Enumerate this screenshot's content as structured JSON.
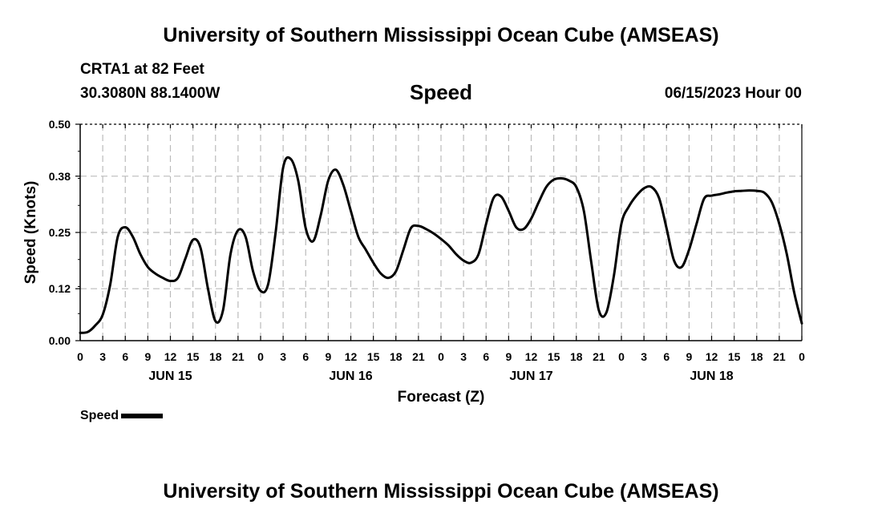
{
  "page": {
    "title": "University of Southern Mississippi Ocean Cube (AMSEAS)",
    "footer_title": "University of Southern Mississippi Ocean Cube (AMSEAS)",
    "station": "CRTA1 at 82 Feet",
    "coords": "30.3080N  88.1400W",
    "subtitle": "Speed",
    "datetime": "06/15/2023 Hour 00"
  },
  "chart_data": {
    "type": "line",
    "title": "Speed",
    "xlabel": "Forecast (Z)",
    "ylabel": "Speed (Knots)",
    "ylim": [
      0,
      0.5
    ],
    "yticks": [
      0.0,
      0.12,
      0.25,
      0.38,
      0.5
    ],
    "ytick_labels": [
      "0.00",
      "0.12",
      "0.25",
      "0.38",
      "0.50"
    ],
    "xlim": [
      0,
      96
    ],
    "xtick_step_hours": 3,
    "xtick_labels": [
      "0",
      "3",
      "6",
      "9",
      "12",
      "15",
      "18",
      "21",
      "0",
      "3",
      "6",
      "9",
      "12",
      "15",
      "18",
      "21",
      "0",
      "3",
      "6",
      "9",
      "12",
      "15",
      "18",
      "21",
      "0",
      "3",
      "6",
      "9",
      "12",
      "15",
      "18",
      "21",
      "0"
    ],
    "date_labels": [
      {
        "label": "JUN 15",
        "hour": 12
      },
      {
        "label": "JUN 16",
        "hour": 36
      },
      {
        "label": "JUN 17",
        "hour": 60
      },
      {
        "label": "JUN 18",
        "hour": 84
      }
    ],
    "grid": true,
    "legend": [
      {
        "label": "Speed",
        "color": "#000000"
      }
    ],
    "series": [
      {
        "name": "Speed",
        "color": "#000000",
        "x": [
          0,
          1,
          2,
          3,
          4,
          5,
          6,
          7,
          8,
          9,
          10,
          11,
          12,
          13,
          14,
          15,
          16,
          17,
          18,
          19,
          20,
          21,
          22,
          23,
          24,
          25,
          26,
          27,
          28,
          29,
          30,
          31,
          32,
          33,
          34,
          35,
          36,
          37,
          38,
          39,
          40,
          41,
          42,
          43,
          44,
          45,
          46,
          47,
          48,
          49,
          50,
          51,
          52,
          53,
          54,
          55,
          56,
          57,
          58,
          59,
          60,
          61,
          62,
          63,
          64,
          65,
          66,
          67,
          68,
          69,
          70,
          71,
          72,
          73,
          74,
          75,
          76,
          77,
          78,
          79,
          80,
          81,
          82,
          83,
          84,
          85,
          86,
          87,
          88,
          89,
          90,
          91,
          92,
          93,
          94,
          95,
          96
        ],
        "values": [
          0.018,
          0.02,
          0.035,
          0.06,
          0.13,
          0.24,
          0.262,
          0.24,
          0.2,
          0.17,
          0.155,
          0.145,
          0.138,
          0.145,
          0.19,
          0.233,
          0.215,
          0.12,
          0.045,
          0.07,
          0.2,
          0.255,
          0.24,
          0.16,
          0.115,
          0.13,
          0.25,
          0.4,
          0.42,
          0.37,
          0.26,
          0.23,
          0.29,
          0.37,
          0.395,
          0.36,
          0.3,
          0.24,
          0.21,
          0.18,
          0.155,
          0.145,
          0.16,
          0.21,
          0.26,
          0.265,
          0.258,
          0.248,
          0.235,
          0.22,
          0.2,
          0.185,
          0.18,
          0.2,
          0.27,
          0.33,
          0.333,
          0.3,
          0.262,
          0.258,
          0.282,
          0.32,
          0.355,
          0.372,
          0.375,
          0.37,
          0.355,
          0.3,
          0.18,
          0.07,
          0.065,
          0.15,
          0.27,
          0.31,
          0.335,
          0.352,
          0.355,
          0.33,
          0.26,
          0.185,
          0.17,
          0.21,
          0.27,
          0.328,
          0.335,
          0.338,
          0.342,
          0.345,
          0.346,
          0.347,
          0.346,
          0.342,
          0.32,
          0.27,
          0.2,
          0.11,
          0.04
        ]
      }
    ]
  }
}
